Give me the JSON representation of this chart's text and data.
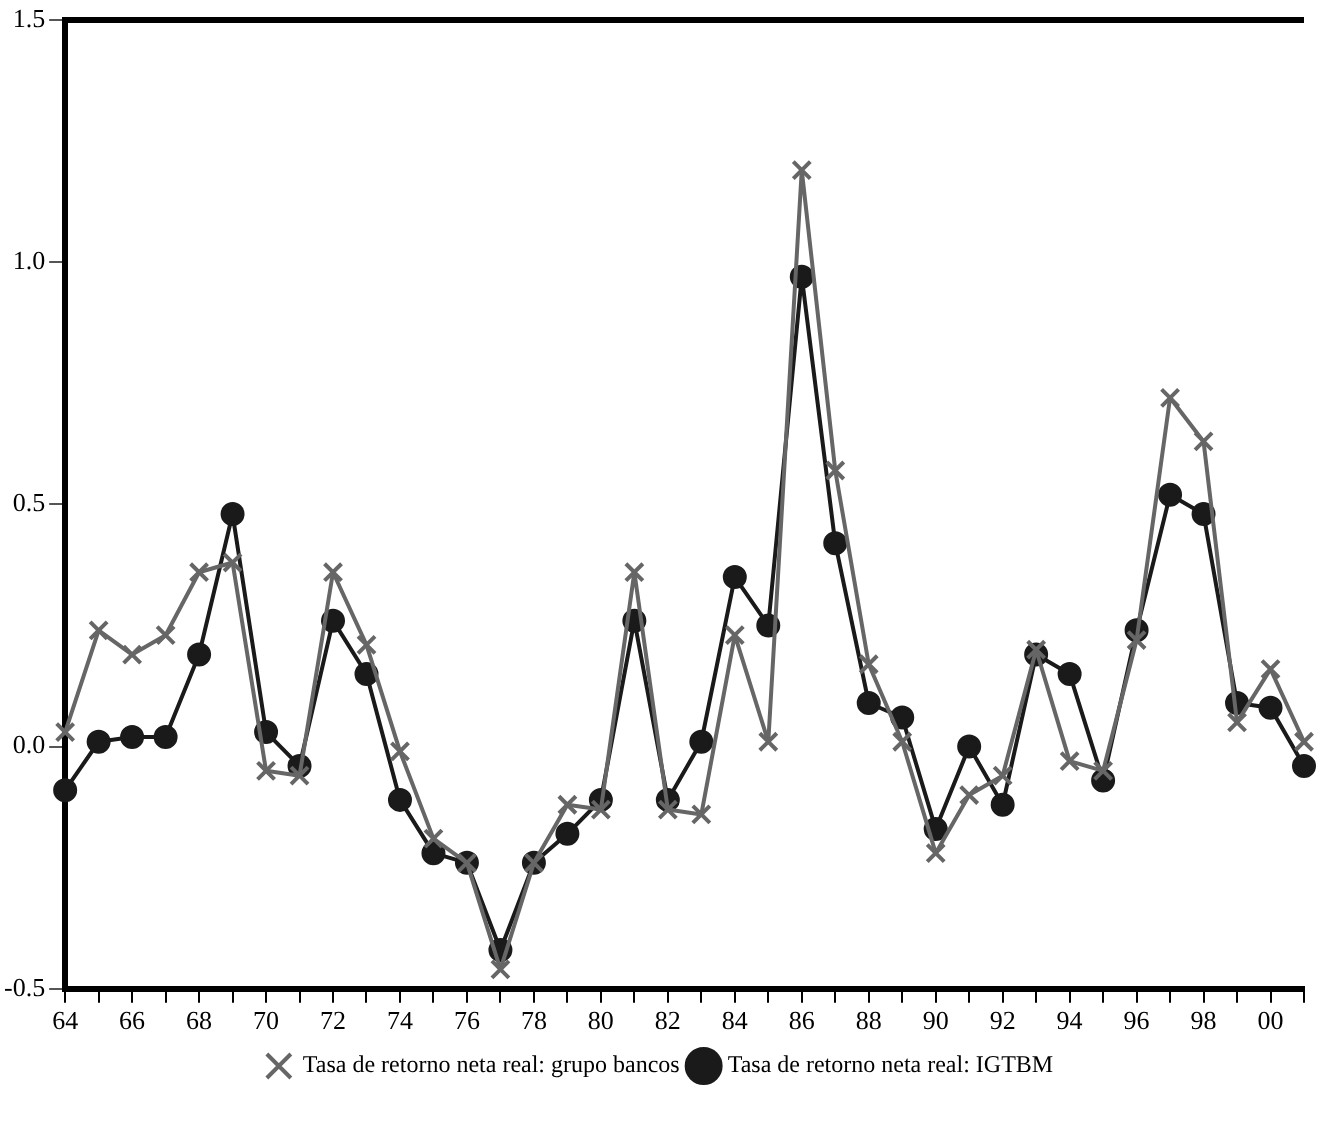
{
  "chart_data": {
    "type": "line",
    "categories": [
      "64",
      null,
      "66",
      null,
      "68",
      null,
      "70",
      null,
      "72",
      null,
      "74",
      null,
      "76",
      null,
      "78",
      null,
      "80",
      null,
      "82",
      null,
      "84",
      null,
      "86",
      null,
      "88",
      null,
      "90",
      null,
      "92",
      null,
      "94",
      null,
      "96",
      null,
      "98",
      null,
      "00",
      null
    ],
    "series": [
      {
        "name": "Tasa de retorno neta real: IGTBM",
        "color": "#1a1a1a",
        "marker": "circle",
        "values": [
          -0.09,
          0.01,
          0.02,
          0.02,
          0.19,
          0.48,
          0.03,
          -0.04,
          0.26,
          0.15,
          -0.11,
          -0.22,
          -0.24,
          -0.42,
          -0.24,
          -0.18,
          -0.11,
          0.26,
          -0.11,
          0.01,
          0.35,
          0.25,
          0.97,
          0.42,
          0.09,
          0.06,
          -0.17,
          0.0,
          -0.12,
          0.19,
          0.15,
          -0.07,
          0.24,
          0.52,
          0.48,
          0.09,
          0.08,
          -0.04
        ]
      },
      {
        "name": "Tasa de retorno neta real: grupo bancos",
        "color": "#666666",
        "marker": "cross",
        "values": [
          0.03,
          0.24,
          0.19,
          0.23,
          0.36,
          0.38,
          -0.05,
          -0.06,
          0.36,
          0.21,
          -0.01,
          -0.19,
          -0.24,
          -0.46,
          -0.24,
          -0.12,
          -0.13,
          0.36,
          -0.13,
          -0.14,
          0.23,
          0.01,
          1.19,
          0.57,
          0.17,
          0.01,
          -0.22,
          -0.1,
          -0.06,
          0.2,
          -0.03,
          -0.05,
          0.22,
          0.72,
          0.63,
          0.05,
          0.16,
          0.01
        ]
      }
    ],
    "ylim": [
      -0.5,
      1.5
    ],
    "yticks": [
      {
        "value": -0.5,
        "label": "-0.5"
      },
      {
        "value": 0,
        "label": "0.0"
      },
      {
        "value": 0.5,
        "label": "0.5"
      },
      {
        "value": 1,
        "label": "1.0"
      },
      {
        "value": 1.5,
        "label": "1.5"
      }
    ],
    "grid": false,
    "legend": "bottom",
    "line_style": "solid"
  }
}
